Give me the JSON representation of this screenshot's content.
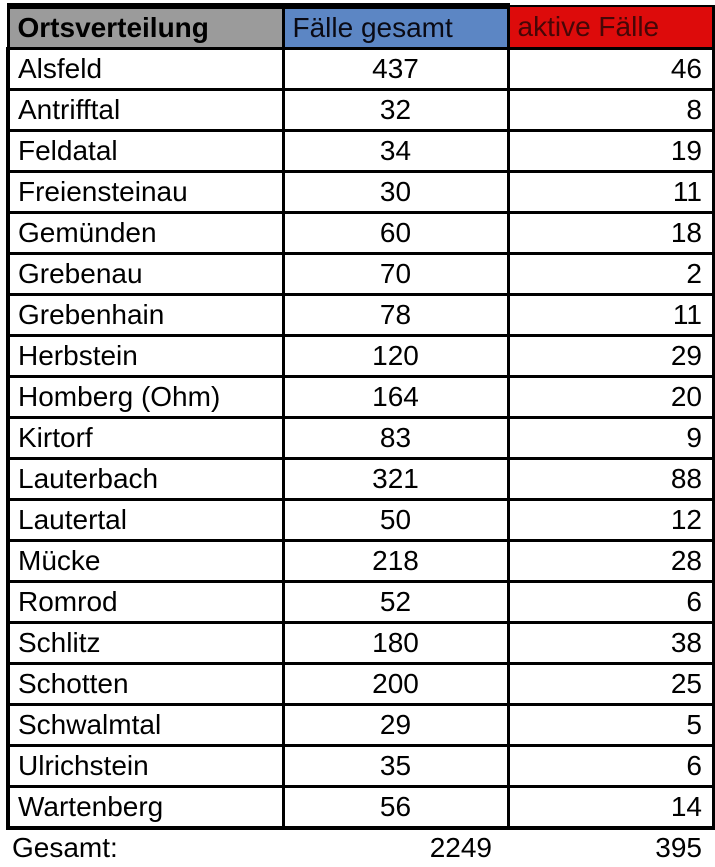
{
  "table": {
    "headers": [
      {
        "label": "Ortsverteilung",
        "bg": "#9b9b9b",
        "color": "#000000"
      },
      {
        "label": "Fälle gesamt",
        "bg": "#5c86c4",
        "color": "#0a0a14"
      },
      {
        "label": "aktive Fälle",
        "bg": "#dd0b0b",
        "color": "#460707"
      }
    ],
    "rows": [
      {
        "name": "Alsfeld",
        "total": "437",
        "active": "46"
      },
      {
        "name": "Antrifftal",
        "total": "32",
        "active": "8"
      },
      {
        "name": "Feldatal",
        "total": "34",
        "active": "19"
      },
      {
        "name": "Freiensteinau",
        "total": "30",
        "active": "11"
      },
      {
        "name": "Gemünden",
        "total": "60",
        "active": "18"
      },
      {
        "name": "Grebenau",
        "total": "70",
        "active": "2"
      },
      {
        "name": "Grebenhain",
        "total": "78",
        "active": "11"
      },
      {
        "name": "Herbstein",
        "total": "120",
        "active": "29"
      },
      {
        "name": "Homberg (Ohm)",
        "total": "164",
        "active": "20"
      },
      {
        "name": "Kirtorf",
        "total": "83",
        "active": "9"
      },
      {
        "name": "Lauterbach",
        "total": "321",
        "active": "88"
      },
      {
        "name": "Lautertal",
        "total": "50",
        "active": "12"
      },
      {
        "name": "Mücke",
        "total": "218",
        "active": "28"
      },
      {
        "name": "Romrod",
        "total": "52",
        "active": "6"
      },
      {
        "name": "Schlitz",
        "total": "180",
        "active": "38"
      },
      {
        "name": "Schotten",
        "total": "200",
        "active": "25"
      },
      {
        "name": "Schwalmtal",
        "total": "29",
        "active": "5"
      },
      {
        "name": "Ulrichstein",
        "total": "35",
        "active": "6"
      },
      {
        "name": "Wartenberg",
        "total": "56",
        "active": "14"
      }
    ],
    "footer": {
      "label": "Gesamt:",
      "total": "2249",
      "active": "395"
    }
  },
  "chart_data": {
    "type": "table",
    "title": "Ortsverteilung",
    "columns": [
      "Ortsverteilung",
      "Fälle gesamt",
      "aktive Fälle"
    ],
    "rows": [
      [
        "Alsfeld",
        437,
        46
      ],
      [
        "Antrifftal",
        32,
        8
      ],
      [
        "Feldatal",
        34,
        19
      ],
      [
        "Freiensteinau",
        30,
        11
      ],
      [
        "Gemünden",
        60,
        18
      ],
      [
        "Grebenau",
        70,
        2
      ],
      [
        "Grebenhain",
        78,
        11
      ],
      [
        "Herbstein",
        120,
        29
      ],
      [
        "Homberg (Ohm)",
        164,
        20
      ],
      [
        "Kirtorf",
        83,
        9
      ],
      [
        "Lauterbach",
        321,
        88
      ],
      [
        "Lautertal",
        50,
        12
      ],
      [
        "Mücke",
        218,
        28
      ],
      [
        "Romrod",
        52,
        6
      ],
      [
        "Schlitz",
        180,
        38
      ],
      [
        "Schotten",
        200,
        25
      ],
      [
        "Schwalmtal",
        29,
        5
      ],
      [
        "Ulrichstein",
        35,
        6
      ],
      [
        "Wartenberg",
        56,
        14
      ]
    ],
    "totals": {
      "label": "Gesamt:",
      "faelle_gesamt": 2249,
      "aktive_faelle": 395
    },
    "header_colors": {
      "ortsverteilung": "#9b9b9b",
      "faelle_gesamt": "#5c86c4",
      "aktive_faelle": "#dd0b0b"
    }
  }
}
